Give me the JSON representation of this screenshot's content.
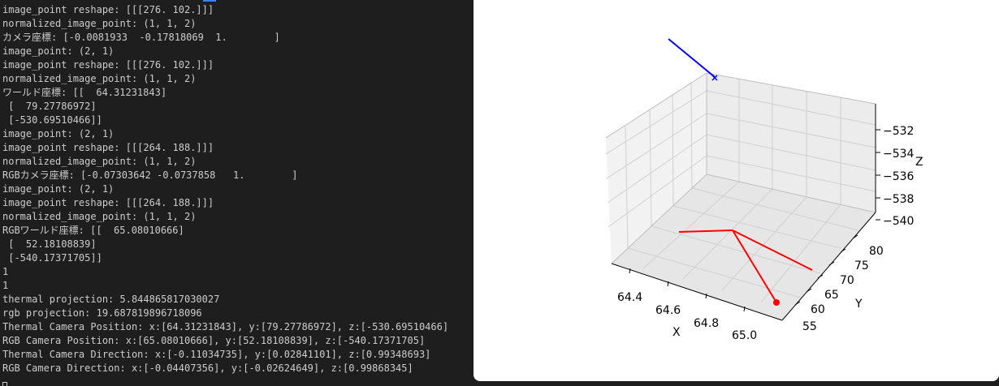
{
  "terminal": {
    "lines": [
      "image_point reshape: [[[276. 102.]]]",
      "normalized_image_point: (1, 1, 2)",
      "カメラ座標: [-0.0081933  -0.17818069  1.        ]",
      "image_point: (2, 1)",
      "image_point reshape: [[[276. 102.]]]",
      "normalized_image_point: (1, 1, 2)",
      "ワールド座標: [[  64.31231843]",
      " [  79.27786972]",
      " [-530.69510466]]",
      "image_point: (2, 1)",
      "image_point reshape: [[[264. 188.]]]",
      "normalized_image_point: (1, 1, 2)",
      "RGBカメラ座標: [-0.07303642 -0.0737858   1.        ]",
      "image_point: (2, 1)",
      "image_point reshape: [[[264. 188.]]]",
      "normalized_image_point: (1, 1, 2)",
      "RGBワールド座標: [[  65.08010666]",
      " [  52.18108839]",
      " [-540.17371705]]",
      "1",
      "1",
      "thermal projection: 5.844865817030027",
      "rgb projection: 19.687819896718096",
      "Thermal Camera Position: x:[64.31231843], y:[79.27786972], z:[-530.69510466]",
      "RGB Camera Position: x:[65.08010666], y:[52.18108839], z:[-540.17371705]",
      "Thermal Camera Direction: x:[-0.11034735], y:[0.02841101], z:[0.99348693]",
      "RGB Camera Direction: x:[-0.04407356], y:[-0.02624649], z:[0.99868345]"
    ]
  },
  "plot": {
    "axes": {
      "x_label": "X",
      "y_label": "Y",
      "z_label": "Z",
      "x_ticks": [
        "64.4",
        "64.6",
        "64.8",
        "65.0"
      ],
      "y_ticks": [
        "55",
        "60",
        "65",
        "70",
        "75",
        "80"
      ],
      "z_ticks": [
        "−532",
        "−534",
        "−536",
        "−538",
        "−540"
      ]
    },
    "colors": {
      "thermal": "#0000ff",
      "rgb": "#ff0000",
      "grid": "#d0d0d0",
      "pane": "#f2f2f2"
    }
  }
}
